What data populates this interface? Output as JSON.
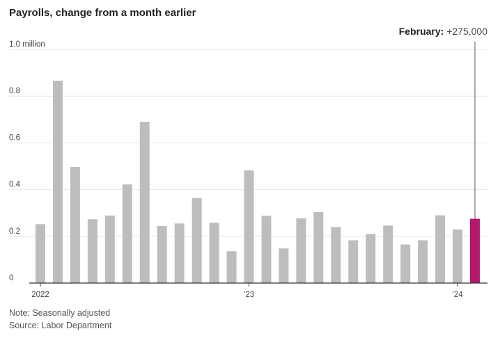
{
  "chart_data": {
    "type": "bar",
    "title": "Payrolls, change from a month earlier",
    "ylabel": "",
    "xlabel": "",
    "ylim": [
      0,
      1.0
    ],
    "y_ticks": [
      {
        "value": 0,
        "label": "0"
      },
      {
        "value": 0.2,
        "label": "0.2"
      },
      {
        "value": 0.4,
        "label": "0.4"
      },
      {
        "value": 0.6,
        "label": "0.6"
      },
      {
        "value": 0.8,
        "label": "0.8"
      },
      {
        "value": 1.0,
        "label": "1.0 million"
      }
    ],
    "x_ticks": [
      {
        "index": 0,
        "label": "2022"
      },
      {
        "index": 12,
        "label": "’23"
      },
      {
        "index": 24,
        "label": "’24"
      }
    ],
    "categories": [
      "2022-01",
      "2022-02",
      "2022-03",
      "2022-04",
      "2022-05",
      "2022-06",
      "2022-07",
      "2022-08",
      "2022-09",
      "2022-10",
      "2022-11",
      "2022-12",
      "2023-01",
      "2023-02",
      "2023-03",
      "2023-04",
      "2023-05",
      "2023-06",
      "2023-07",
      "2023-08",
      "2023-09",
      "2023-10",
      "2023-11",
      "2023-12",
      "2024-01",
      "2024-02"
    ],
    "values": [
      0.252,
      0.866,
      0.497,
      0.273,
      0.289,
      0.422,
      0.69,
      0.244,
      0.255,
      0.364,
      0.258,
      0.136,
      0.482,
      0.288,
      0.148,
      0.277,
      0.304,
      0.24,
      0.183,
      0.21,
      0.246,
      0.165,
      0.183,
      0.29,
      0.229,
      0.275
    ],
    "highlight_index": 25,
    "colors": {
      "bar": "#bdbdbd",
      "highlight": "#b3186b",
      "grid": "#e6e6e6",
      "axis": "#333333"
    },
    "grid": true,
    "annotation": {
      "label": "February:",
      "value": "+275,000"
    },
    "note": "Note: Seasonally adjusted",
    "source": "Source: Labor Department"
  }
}
